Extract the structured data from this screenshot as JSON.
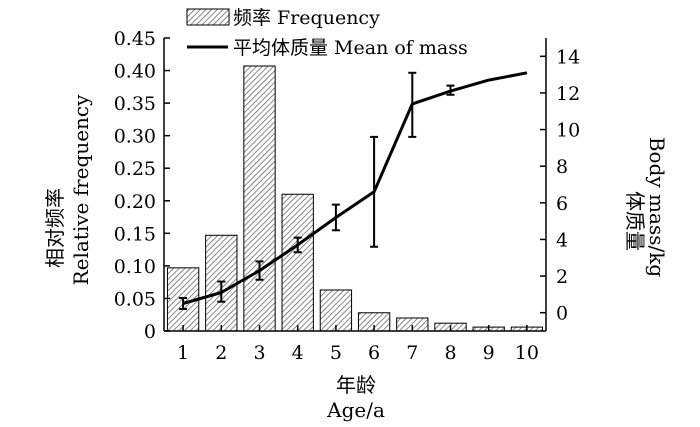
{
  "chart_data": {
    "type": "bar",
    "x_axis": {
      "categories": [
        "1",
        "2",
        "3",
        "4",
        "5",
        "6",
        "7",
        "8",
        "9",
        "10"
      ],
      "label_cn": "年龄",
      "label_en": "Age/a"
    },
    "y_left": {
      "label_cn": "相对频率",
      "label_en": "Relative frequency",
      "ylim": [
        0,
        0.45
      ],
      "ticks": [
        "0",
        "0.05",
        "0.10",
        "0.15",
        "0.20",
        "0.25",
        "0.30",
        "0.35",
        "0.40",
        "0.45"
      ]
    },
    "y_right": {
      "label_cn": "体质量",
      "label_en": "Body mass/kg",
      "ylim": [
        -1,
        15
      ],
      "ticks": [
        "0",
        "2",
        "4",
        "6",
        "8",
        "10",
        "12",
        "14"
      ]
    },
    "legend": {
      "bar_label": "频率 Frequency",
      "line_label": "平均体质量 Mean of mass",
      "placement": "top-left"
    },
    "series": [
      {
        "name": "频率 Frequency",
        "type": "bar",
        "axis": "left",
        "values": [
          0.097,
          0.147,
          0.407,
          0.21,
          0.063,
          0.028,
          0.02,
          0.012,
          0.006,
          0.006
        ]
      },
      {
        "name": "平均体质量 Mean of mass",
        "type": "line",
        "axis": "right",
        "values": [
          0.5,
          1.1,
          2.3,
          3.7,
          5.2,
          6.6,
          11.4,
          12.1,
          12.7,
          13.1
        ],
        "error_low": [
          0.2,
          0.6,
          1.8,
          3.3,
          4.5,
          3.6,
          9.6,
          11.9,
          null,
          null
        ],
        "error_high": [
          0.8,
          1.7,
          2.8,
          4.1,
          5.9,
          9.6,
          13.1,
          12.4,
          null,
          null
        ]
      }
    ],
    "colors": {
      "bar_fill": "#ffffff",
      "hatch": "#555555",
      "line": "#000000"
    }
  }
}
